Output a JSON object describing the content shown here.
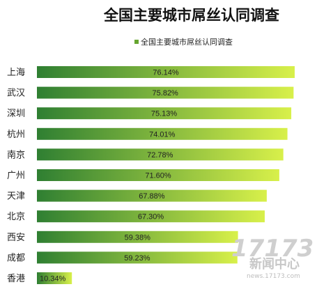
{
  "chart_data": {
    "type": "bar",
    "orientation": "horizontal",
    "title": "全国主要城市屌丝认同调查",
    "legend": {
      "label": "全国主要城市屌丝认同调查",
      "position": "top"
    },
    "categories": [
      "上海",
      "武汉",
      "深圳",
      "杭州",
      "南京",
      "广州",
      "天津",
      "北京",
      "西安",
      "成都",
      "香港"
    ],
    "values": [
      76.14,
      75.82,
      75.13,
      74.01,
      72.78,
      71.6,
      67.88,
      67.3,
      59.38,
      59.23,
      10.34
    ],
    "value_labels": [
      "76.14%",
      "75.82%",
      "75.13%",
      "74.01%",
      "72.78%",
      "71.60%",
      "67.88%",
      "67.30%",
      "59.38%",
      "59.23%",
      "10.34%"
    ],
    "xlim": [
      0,
      80
    ],
    "grid": false,
    "colors": {
      "bar_start": "#2f7f32",
      "bar_end": "#d8f04a",
      "legend_marker": "#66a52f"
    }
  },
  "watermark": {
    "number": "17173",
    "text": "新闻中心",
    "url": "news.17173.com"
  }
}
